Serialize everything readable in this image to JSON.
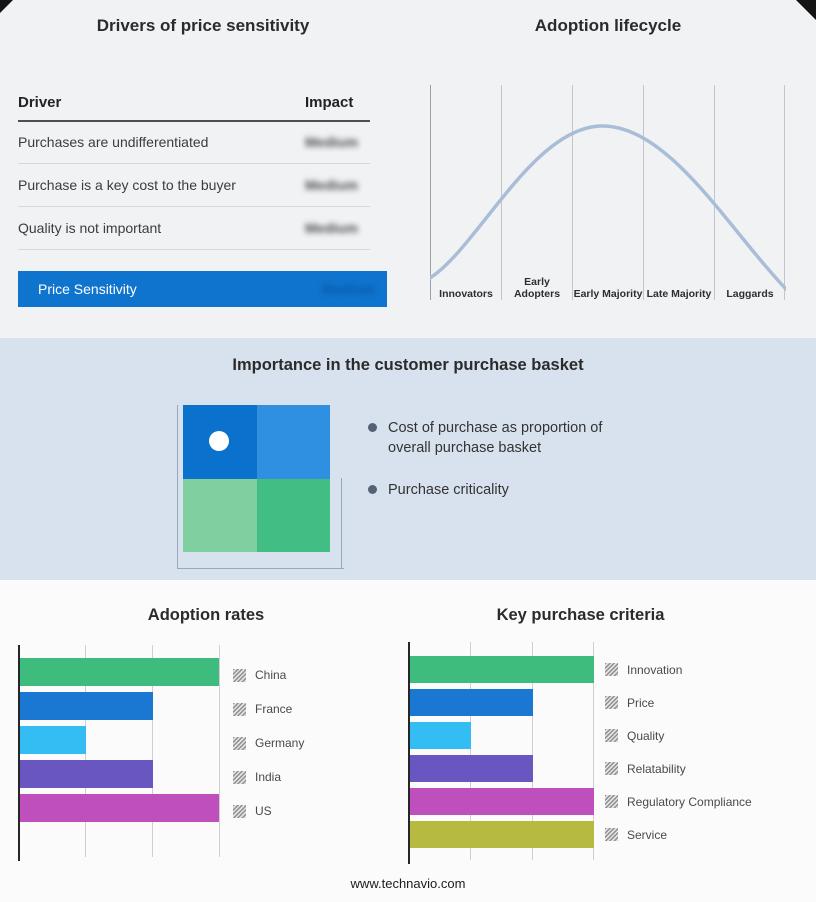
{
  "drivers": {
    "title": "Drivers of price sensitivity",
    "header": {
      "driver": "Driver",
      "impact": "Impact"
    },
    "rows": [
      {
        "driver": "Purchases are undifferentiated",
        "impact": "Medium",
        "impact_redacted": true
      },
      {
        "driver": "Purchase is a key cost to the buyer",
        "impact": "Medium",
        "impact_redacted": true
      },
      {
        "driver": "Quality is not important",
        "impact": "Medium",
        "impact_redacted": true
      }
    ],
    "highlight": {
      "label": "Price Sensitivity",
      "impact": "Medium",
      "impact_redacted": true
    },
    "colors": {
      "highlight_bg": "#0f74ce",
      "highlight_text": "#ffffff"
    }
  },
  "basket": {
    "title": "Importance in the customer purchase basket",
    "bullets": [
      "Cost of purchase as proportion of overall purchase basket",
      "Purchase criticality"
    ],
    "quadrant_colors": [
      "#0a71cd",
      "#2f90e1",
      "#7fcfa1",
      "#42bd83"
    ],
    "bullet_color": "#566176"
  },
  "footer": "www.technavio.com",
  "chart_data": [
    {
      "type": "line",
      "title": "Adoption lifecycle",
      "x_categories": [
        "Innovators",
        "Early Adopters",
        "Early Majority",
        "Late Majority",
        "Laggards"
      ],
      "shape": "bell curve rising from Innovators, peaking at Early Majority, falling to Laggards",
      "curve_color": "#a9bdd6",
      "grid": true,
      "ylabel": "",
      "xlabel": ""
    },
    {
      "type": "bar",
      "title": "Adoption rates",
      "orientation": "horizontal",
      "categories": [
        "China",
        "France",
        "Germany",
        "India",
        "US"
      ],
      "values": [
        3,
        2,
        1,
        2,
        3
      ],
      "xlim": [
        0,
        3
      ],
      "value_note": "axis unlabeled; values estimated in gridline units",
      "colors": [
        "#3dbc7e",
        "#1a78d2",
        "#34bdf2",
        "#6a56c1",
        "#c04fbe"
      ],
      "grid": true,
      "legend_position": "right"
    },
    {
      "type": "bar",
      "title": "Key purchase criteria",
      "orientation": "horizontal",
      "categories": [
        "Innovation",
        "Price",
        "Quality",
        "Relatability",
        "Regulatory Compliance",
        "Service"
      ],
      "values": [
        3,
        2,
        1,
        2,
        3,
        3
      ],
      "xlim": [
        0,
        3
      ],
      "value_note": "axis unlabeled; values estimated in gridline units",
      "colors": [
        "#3dbc7e",
        "#1a78d2",
        "#34bdf2",
        "#6a56c1",
        "#c04fbe",
        "#b7ba40"
      ],
      "grid": true,
      "legend_position": "right"
    }
  ]
}
